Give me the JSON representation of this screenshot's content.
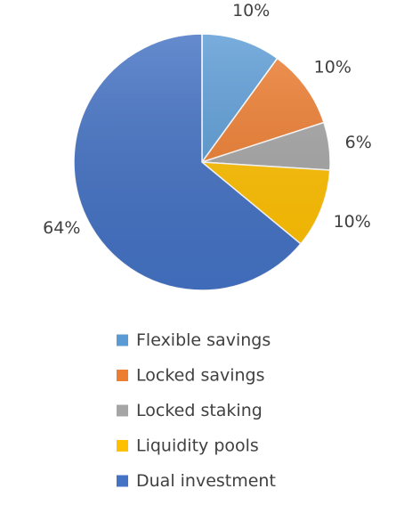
{
  "chart_data": {
    "type": "pie",
    "title": "",
    "categories": [
      "Flexible savings",
      "Locked savings",
      "Locked staking",
      "Liquidity pools",
      "Dual investment"
    ],
    "values": [
      10,
      10,
      6,
      10,
      64
    ],
    "labels": [
      "10%",
      "10%",
      "6%",
      "10%",
      "64%"
    ],
    "colors": [
      "#5b9bd5",
      "#ed7d31",
      "#a5a5a5",
      "#ffc000",
      "#4472c4"
    ],
    "legend": "bottom",
    "start_angle": "12 o'clock",
    "direction": "clockwise"
  }
}
